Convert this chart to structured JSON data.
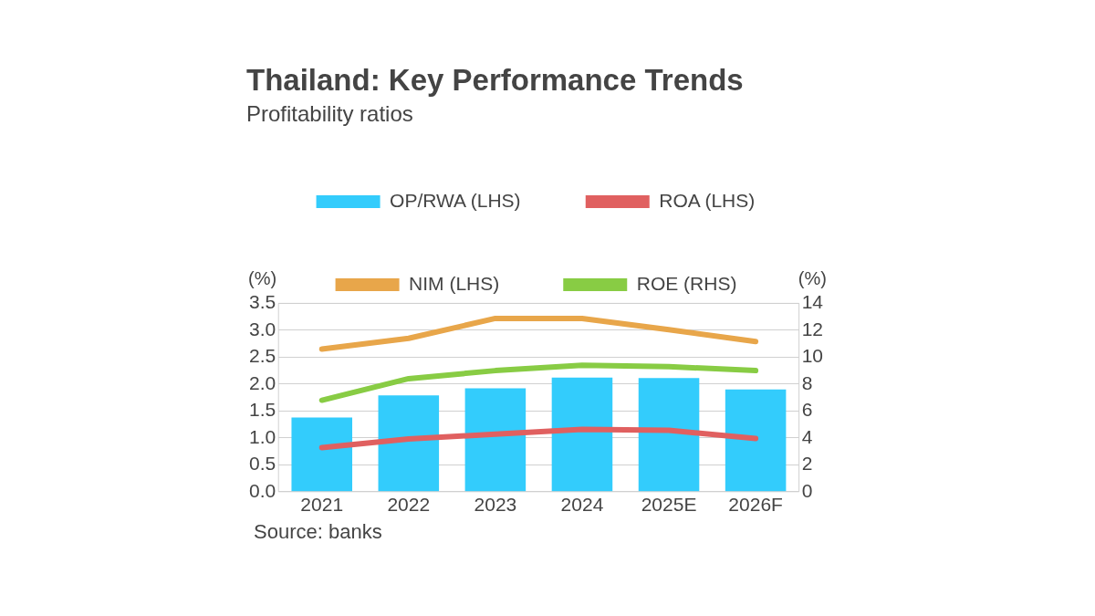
{
  "chart_data": {
    "type": "bar",
    "title": "Thailand: Key Performance Trends",
    "subtitle": "Profitability ratios",
    "ylabel": "(%)",
    "y2label": "(%)",
    "categories": [
      "2021",
      "2022",
      "2023",
      "2024",
      "2025E",
      "2026F"
    ],
    "series": [
      {
        "name": "OP/RWA (LHS)",
        "color": "#33ccfc",
        "values": [
          1.38,
          1.79,
          1.92,
          2.12,
          2.11,
          1.9
        ]
      },
      {
        "name": "ROA (LHS)",
        "type": "line",
        "color": "#e06060",
        "values": [
          0.82,
          0.98,
          1.07,
          1.16,
          1.14,
          0.99
        ]
      },
      {
        "name": "NIM (LHS)",
        "type": "line",
        "color": "#e8a64a",
        "values": [
          2.65,
          2.85,
          3.22,
          3.22,
          3.01,
          2.79
        ]
      },
      {
        "name": "ROE (RHS)",
        "type": "line",
        "axis": "y2",
        "color": "#88cc44",
        "values": [
          6.8,
          8.4,
          9.0,
          9.4,
          9.3,
          9.0
        ]
      }
    ],
    "ylim": [
      0,
      3.5
    ],
    "yticks": [
      {
        "value": 0,
        "label": "0.0"
      },
      {
        "value": 0.5,
        "label": "0.5"
      },
      {
        "value": 1,
        "label": "1.0"
      },
      {
        "value": 1.5,
        "label": "1.5"
      },
      {
        "value": 2,
        "label": "2.0"
      },
      {
        "value": 2.5,
        "label": "2.5"
      },
      {
        "value": 3,
        "label": "3.0"
      },
      {
        "value": 3.5,
        "label": "3.5"
      }
    ],
    "y2lim": [
      0,
      14
    ],
    "y2ticks": [
      0,
      2,
      4,
      6,
      8,
      10,
      12,
      14
    ],
    "grid": "y",
    "legend": "top",
    "marker": "none",
    "line_style": "solid",
    "annotations": [
      "Source: banks"
    ]
  }
}
